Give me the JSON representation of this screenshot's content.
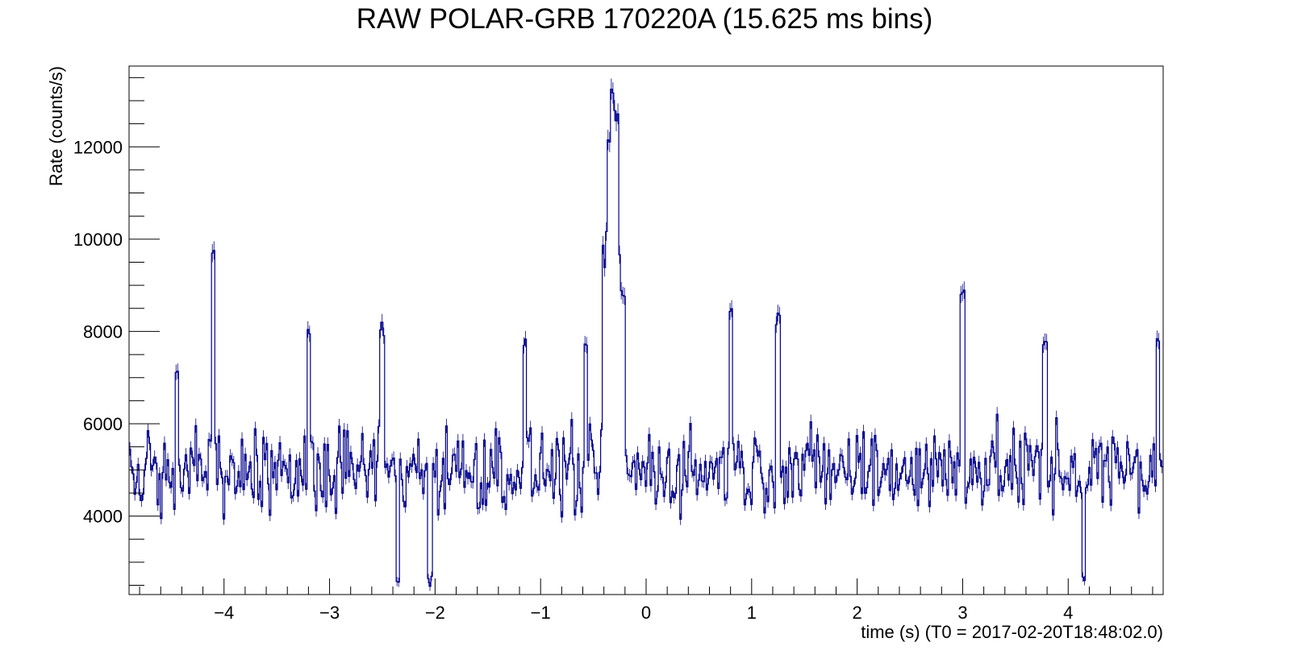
{
  "chart_data": {
    "type": "line",
    "title": "RAW POLAR-GRB 170220A (15.625 ms bins)",
    "xlabel": "time (s) (T0 = 2017-02-20T18:48:02.0)",
    "ylabel": "Rate (counts/s)",
    "xlim": [
      -4.9,
      4.9
    ],
    "ylim": [
      2300,
      13750
    ],
    "bin_width": 0.015625,
    "x_ticks": [
      -4,
      -3,
      -2,
      -1,
      0,
      1,
      2,
      3,
      4
    ],
    "x_tick_labels": [
      "−4",
      "−3",
      "−2",
      "−1",
      "0",
      "1",
      "2",
      "3",
      "4"
    ],
    "y_ticks": [
      4000,
      6000,
      8000,
      10000,
      12000
    ],
    "y_tick_labels": [
      "4000",
      "6000",
      "8000",
      "10000",
      "12000"
    ],
    "grid": false,
    "legend": "none",
    "line_color": "#00008b",
    "series": [
      {
        "baseline": 5000,
        "noise_amplitude": 700,
        "peaks": [
          {
            "t": -4.45,
            "rate": 7400
          },
          {
            "t": -4.1,
            "rate": 9800
          },
          {
            "t": -3.2,
            "rate": 8200
          },
          {
            "t": -2.5,
            "rate": 8200
          },
          {
            "t": -2.35,
            "rate": 2700
          },
          {
            "t": -2.05,
            "rate": 2700
          },
          {
            "t": -1.15,
            "rate": 7900
          },
          {
            "t": -0.57,
            "rate": 8000
          },
          {
            "t": -0.35,
            "rate": 12400
          },
          {
            "t": -0.32,
            "rate": 13300
          },
          {
            "t": -0.28,
            "rate": 12800
          },
          {
            "t": -0.22,
            "rate": 9000
          },
          {
            "t": 0.8,
            "rate": 8500
          },
          {
            "t": 1.25,
            "rate": 8400
          },
          {
            "t": 3.0,
            "rate": 9000
          },
          {
            "t": 3.78,
            "rate": 8000
          },
          {
            "t": 4.15,
            "rate": 2900
          },
          {
            "t": 4.85,
            "rate": 7900
          }
        ]
      }
    ]
  }
}
